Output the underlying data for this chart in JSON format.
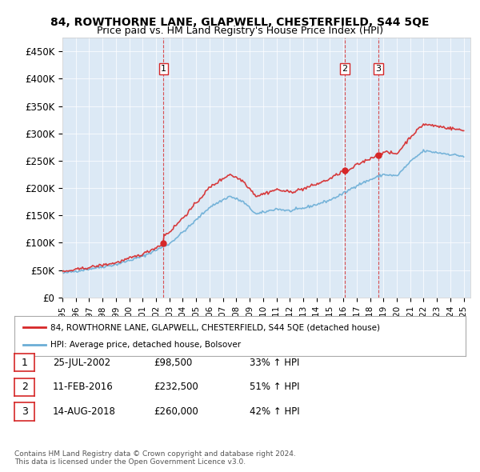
{
  "title": "84, ROWTHORNE LANE, GLAPWELL, CHESTERFIELD, S44 5QE",
  "subtitle": "Price paid vs. HM Land Registry's House Price Index (HPI)",
  "ylabel": "",
  "background_color": "#dce9f5",
  "plot_bg_color": "#dce9f5",
  "ylim": [
    0,
    475000
  ],
  "yticks": [
    0,
    50000,
    100000,
    150000,
    200000,
    250000,
    300000,
    350000,
    400000,
    450000
  ],
  "ytick_labels": [
    "£0",
    "£50K",
    "£100K",
    "£150K",
    "£200K",
    "£250K",
    "£300K",
    "£350K",
    "£400K",
    "£450K"
  ],
  "sale1_date": 2002.56,
  "sale1_price": 98500,
  "sale2_date": 2016.12,
  "sale2_price": 232500,
  "sale3_date": 2018.62,
  "sale3_price": 260000,
  "legend_line1": "84, ROWTHORNE LANE, GLAPWELL, CHESTERFIELD, S44 5QE (detached house)",
  "legend_line2": "HPI: Average price, detached house, Bolsover",
  "table_rows": [
    [
      "1",
      "25-JUL-2002",
      "£98,500",
      "33% ↑ HPI"
    ],
    [
      "2",
      "11-FEB-2016",
      "£232,500",
      "51% ↑ HPI"
    ],
    [
      "3",
      "14-AUG-2018",
      "£260,000",
      "42% ↑ HPI"
    ]
  ],
  "footer": "Contains HM Land Registry data © Crown copyright and database right 2024.\nThis data is licensed under the Open Government Licence v3.0.",
  "hpi_color": "#6baed6",
  "price_color": "#d62728",
  "dashed_color": "#d62728"
}
